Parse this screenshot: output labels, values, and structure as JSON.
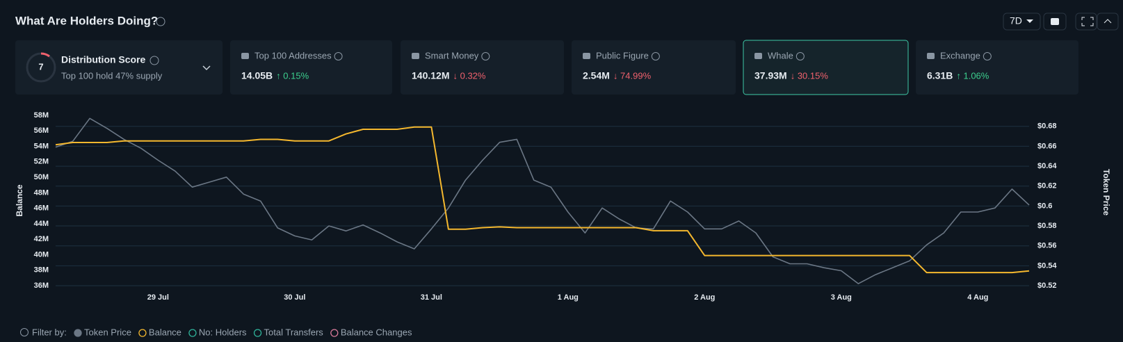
{
  "header": {
    "title": "What Are Holders Doing?",
    "range": "7D"
  },
  "cards": [
    {
      "title": "Distribution Score",
      "score": "7",
      "subtitle": "Top 100 hold 47% supply"
    },
    {
      "title": "Top 100 Addresses",
      "value": "14.05B",
      "change": "↑ 0.15%",
      "direction": "up"
    },
    {
      "title": "Smart Money",
      "value": "140.12M",
      "change": "↓ 0.32%",
      "direction": "down"
    },
    {
      "title": "Public Figure",
      "value": "2.54M",
      "change": "↓ 74.99%",
      "direction": "down"
    },
    {
      "title": "Whale",
      "value": "37.93M",
      "change": "↓ 30.15%",
      "direction": "down",
      "selected": true
    },
    {
      "title": "Exchange",
      "value": "6.31B",
      "change": "↑ 1.06%",
      "direction": "up"
    }
  ],
  "chart_data": {
    "type": "line",
    "y_label": "Balance",
    "y2_label": "Token Price",
    "categories": [
      null,
      null,
      null,
      null,
      null,
      null,
      "29 Jul",
      null,
      null,
      null,
      null,
      null,
      null,
      null,
      "30 Jul",
      null,
      null,
      null,
      null,
      null,
      null,
      null,
      "31 Jul",
      null,
      null,
      null,
      null,
      null,
      null,
      null,
      "1 Aug",
      null,
      null,
      null,
      null,
      null,
      null,
      null,
      "2 Aug",
      null,
      null,
      null,
      null,
      null,
      null,
      null,
      "3 Aug",
      null,
      null,
      null,
      null,
      null,
      null,
      null,
      "4 Aug",
      null,
      null,
      null
    ],
    "ylim": [
      36,
      58
    ],
    "yticks": [
      {
        "value": 36,
        "label": "36M"
      },
      {
        "value": 38,
        "label": "38M"
      },
      {
        "value": 40,
        "label": "40M"
      },
      {
        "value": 42,
        "label": "42M"
      },
      {
        "value": 44,
        "label": "44M"
      },
      {
        "value": 46,
        "label": "46M"
      },
      {
        "value": 48,
        "label": "48M"
      },
      {
        "value": 50,
        "label": "50M"
      },
      {
        "value": 52,
        "label": "52M"
      },
      {
        "value": 54,
        "label": "54M"
      },
      {
        "value": 56,
        "label": "56M"
      },
      {
        "value": 58,
        "label": "58M"
      }
    ],
    "y2lim": [
      0.52,
      0.691
    ],
    "y2ticks": [
      {
        "value": 0.52,
        "label": "$0.52"
      },
      {
        "value": 0.54,
        "label": "$0.54"
      },
      {
        "value": 0.56,
        "label": "$0.56"
      },
      {
        "value": 0.58,
        "label": "$0.58"
      },
      {
        "value": 0.6,
        "label": "$0.6"
      },
      {
        "value": 0.62,
        "label": "$0.62"
      },
      {
        "value": 0.64,
        "label": "$0.64"
      },
      {
        "value": 0.66,
        "label": "$0.66"
      },
      {
        "value": 0.68,
        "label": "$0.68"
      }
    ],
    "grid": true,
    "series": [
      {
        "name": "Token Price",
        "color": "#6b7785",
        "axis": "y2",
        "values": [
          0.659,
          0.665,
          0.688,
          0.678,
          0.667,
          0.658,
          0.646,
          0.635,
          0.619,
          0.624,
          0.629,
          0.612,
          0.605,
          0.578,
          0.57,
          0.566,
          0.58,
          0.575,
          0.581,
          0.573,
          0.564,
          0.557,
          0.577,
          0.598,
          0.626,
          0.646,
          0.664,
          0.667,
          0.626,
          0.619,
          0.594,
          0.573,
          0.598,
          0.587,
          0.578,
          0.577,
          0.605,
          0.594,
          0.577,
          0.577,
          0.585,
          0.573,
          0.549,
          0.542,
          0.542,
          0.538,
          0.535,
          0.522,
          0.531,
          0.538,
          0.545,
          0.561,
          0.573,
          0.594,
          0.594,
          0.598,
          0.617,
          0.601
        ]
      },
      {
        "name": "Balance",
        "color": "#f5b82e",
        "values": [
          54.2,
          54.5,
          54.5,
          54.5,
          54.7,
          54.7,
          54.7,
          54.7,
          54.7,
          54.7,
          54.7,
          54.7,
          54.9,
          54.9,
          54.7,
          54.7,
          54.7,
          55.6,
          56.2,
          56.2,
          56.2,
          56.5,
          56.5,
          43.3,
          43.3,
          43.5,
          43.6,
          43.5,
          43.5,
          43.5,
          43.5,
          43.5,
          43.5,
          43.5,
          43.5,
          43.1,
          43.1,
          43.1,
          39.9,
          39.9,
          39.9,
          39.9,
          39.9,
          39.9,
          39.9,
          39.9,
          39.9,
          39.9,
          39.9,
          39.9,
          39.9,
          37.7,
          37.7,
          37.7,
          37.7,
          37.7,
          37.7,
          37.9
        ]
      }
    ]
  },
  "legend": {
    "label": "Filter by:",
    "filters": [
      {
        "name": "No: Holders",
        "color": "#2fb39a"
      },
      {
        "name": "Total Transfers",
        "color": "#2fb39a"
      },
      {
        "name": "Balance Changes",
        "color": "#d97a9a"
      }
    ]
  }
}
